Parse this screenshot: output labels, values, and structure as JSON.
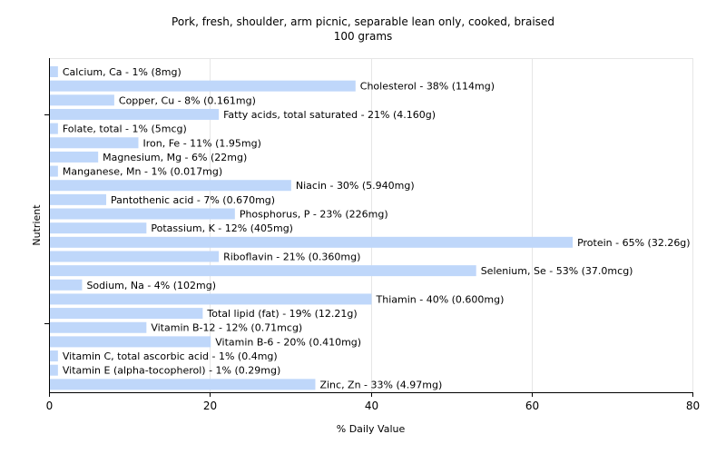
{
  "chart_data": {
    "type": "bar",
    "orientation": "horizontal",
    "title": "Pork, fresh, shoulder, arm picnic, separable lean only, cooked, braised",
    "subtitle": "100 grams",
    "xlabel": "% Daily Value",
    "ylabel": "Nutrient",
    "xlim": [
      0,
      80
    ],
    "xticks": [
      0,
      20,
      40,
      60,
      80
    ],
    "grid": true,
    "legend": "none",
    "bar_color": "#bfd7fa",
    "categories": [
      "Calcium, Ca",
      "Cholesterol",
      "Copper, Cu",
      "Fatty acids, total saturated",
      "Folate, total",
      "Iron, Fe",
      "Magnesium, Mg",
      "Manganese, Mn",
      "Niacin",
      "Pantothenic acid",
      "Phosphorus, P",
      "Potassium, K",
      "Protein",
      "Riboflavin",
      "Selenium, Se",
      "Sodium, Na",
      "Thiamin",
      "Total lipid (fat)",
      "Vitamin B-12",
      "Vitamin B-6",
      "Vitamin C, total ascorbic acid",
      "Vitamin E (alpha-tocopherol)",
      "Zinc, Zn"
    ],
    "values": [
      1,
      38,
      8,
      21,
      1,
      11,
      6,
      1,
      30,
      7,
      23,
      12,
      65,
      21,
      53,
      4,
      40,
      19,
      12,
      20,
      1,
      1,
      33
    ],
    "labels": [
      "Calcium, Ca - 1% (8mg)",
      "Cholesterol - 38% (114mg)",
      "Copper, Cu - 8% (0.161mg)",
      "Fatty acids, total saturated - 21% (4.160g)",
      "Folate, total - 1% (5mcg)",
      "Iron, Fe - 11% (1.95mg)",
      "Magnesium, Mg - 6% (22mg)",
      "Manganese, Mn - 1% (0.017mg)",
      "Niacin - 30% (5.940mg)",
      "Pantothenic acid - 7% (0.670mg)",
      "Phosphorus, P - 23% (226mg)",
      "Potassium, K - 12% (405mg)",
      "Protein - 65% (32.26g)",
      "Riboflavin - 21% (0.360mg)",
      "Selenium, Se - 53% (37.0mcg)",
      "Sodium, Na - 4% (102mg)",
      "Thiamin - 40% (0.600mg)",
      "Total lipid (fat) - 19% (12.21g)",
      "Vitamin B-12 - 12% (0.71mcg)",
      "Vitamin B-6 - 20% (0.410mg)",
      "Vitamin C, total ascorbic acid - 1% (0.4mg)",
      "Vitamin E (alpha-tocopherol) - 1% (0.29mg)",
      "Zinc, Zn - 33% (4.97mg)"
    ]
  }
}
